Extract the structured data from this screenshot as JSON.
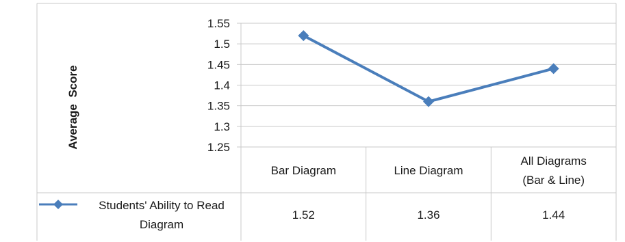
{
  "chart_data": {
    "type": "line",
    "ylabel": "Average  Score",
    "ylim": [
      1.25,
      1.55
    ],
    "y_ticks": [
      "1.25",
      "1.3",
      "1.35",
      "1.4",
      "1.45",
      "1.5",
      "1.55"
    ],
    "grid": true,
    "categories": [
      {
        "line1": "Bar Diagram",
        "line2": ""
      },
      {
        "line1": "Line Diagram",
        "line2": ""
      },
      {
        "line1": "All Diagrams",
        "line2": "(Bar & Line)"
      }
    ],
    "series": [
      {
        "name": "Students' Ability to Read Diagram",
        "name_line1": "Students' Ability to Read",
        "name_line2": "Diagram",
        "values": [
          1.52,
          1.36,
          1.44
        ],
        "value_labels": [
          "1.52",
          "1.36",
          "1.44"
        ],
        "color": "#4a7ebb",
        "marker": "diamond"
      }
    ],
    "legend_placement": "bottom-left, in data table"
  }
}
